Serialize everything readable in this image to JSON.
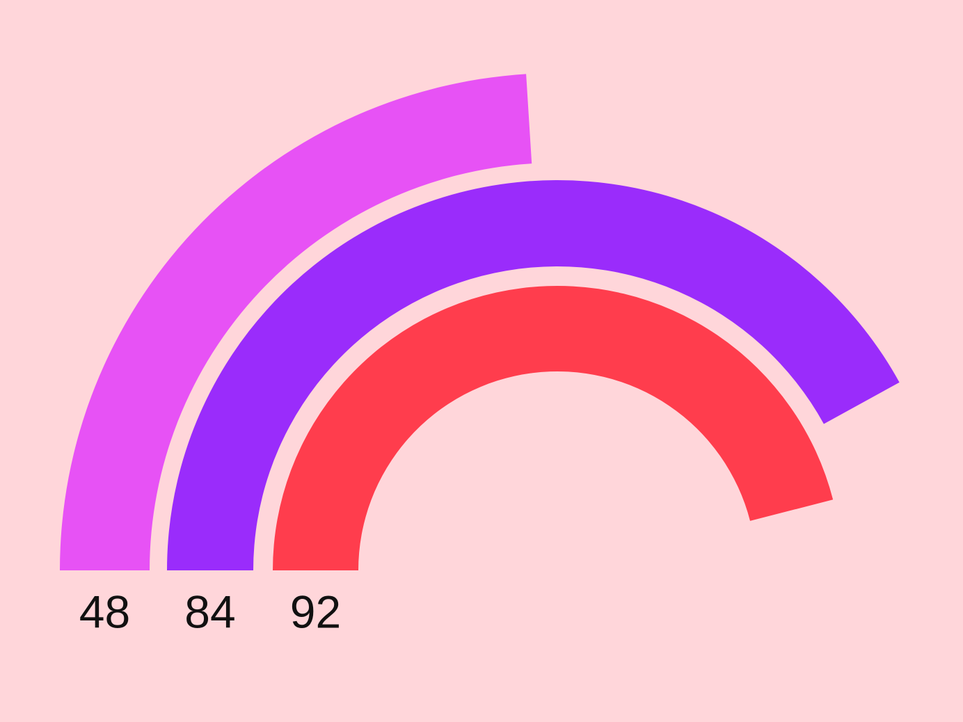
{
  "chart_data": {
    "type": "radial_bar",
    "values": [
      48,
      84,
      92
    ],
    "colors": [
      "#e752f5",
      "#9a2cfb",
      "#ff3d4d"
    ],
    "ylim": [
      0,
      100
    ]
  }
}
